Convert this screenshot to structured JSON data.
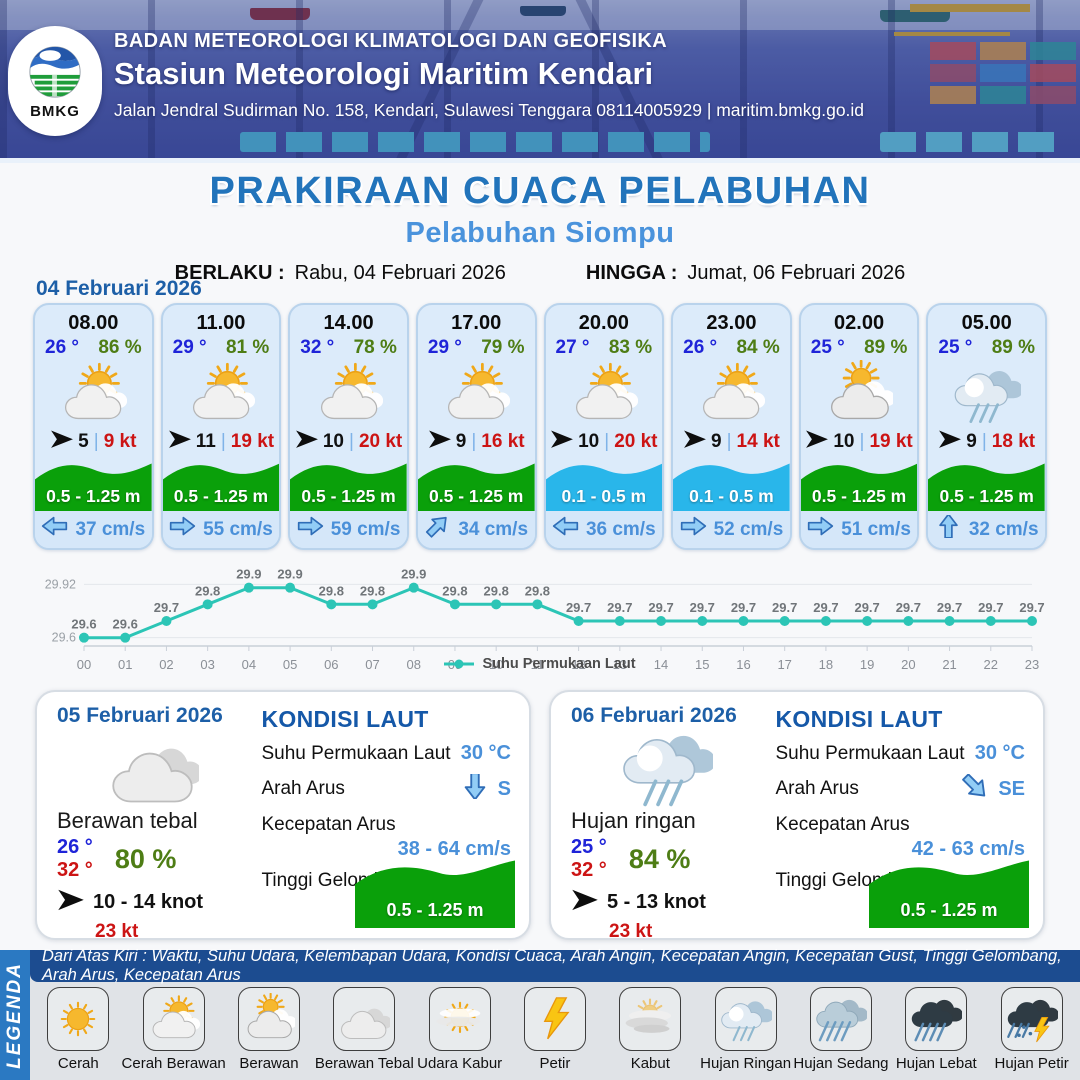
{
  "header": {
    "logo_label": "BMKG",
    "agency": "BADAN METEOROLOGI KLIMATOLOGI DAN GEOFISIKA",
    "station": "Stasiun Meteorologi Maritim Kendari",
    "address": "Jalan Jendral Sudirman No. 158, Kendari, Sulawesi Tenggara 08114005929 | maritim.bmkg.go.id"
  },
  "title": {
    "main": "PRAKIRAAN CUACA PELABUHAN",
    "subtitle": "Pelabuhan Siompu",
    "berlaku_label": "BERLAKU :",
    "berlaku_value": "Rabu, 04 Februari 2026",
    "hingga_label": "HINGGA :",
    "hingga_value": "Jumat, 06 Februari 2026"
  },
  "day1": {
    "date": "04 Februari 2026",
    "cards": [
      {
        "time": "08.00",
        "temp": "26 °",
        "humidity": "86 %",
        "weather": "cerah-berawan",
        "wind_avg": "5",
        "wind_gust": "9 kt",
        "wave": "0.5 - 1.25 m",
        "wave_level": "green",
        "current_dir": "W",
        "current_speed": "37 cm/s"
      },
      {
        "time": "11.00",
        "temp": "29 °",
        "humidity": "81 %",
        "weather": "cerah-berawan",
        "wind_avg": "11",
        "wind_gust": "19 kt",
        "wave": "0.5 - 1.25 m",
        "wave_level": "green",
        "current_dir": "E",
        "current_speed": "55 cm/s"
      },
      {
        "time": "14.00",
        "temp": "32 °",
        "humidity": "78 %",
        "weather": "cerah-berawan",
        "wind_avg": "10",
        "wind_gust": "20 kt",
        "wave": "0.5 - 1.25 m",
        "wave_level": "green",
        "current_dir": "E",
        "current_speed": "59 cm/s"
      },
      {
        "time": "17.00",
        "temp": "29 °",
        "humidity": "79 %",
        "weather": "cerah-berawan",
        "wind_avg": "9",
        "wind_gust": "16 kt",
        "wave": "0.5 - 1.25 m",
        "wave_level": "green",
        "current_dir": "NE",
        "current_speed": "34 cm/s"
      },
      {
        "time": "20.00",
        "temp": "27 °",
        "humidity": "83 %",
        "weather": "cerah-berawan",
        "wind_avg": "10",
        "wind_gust": "20 kt",
        "wave": "0.1 - 0.5 m",
        "wave_level": "blue",
        "current_dir": "W",
        "current_speed": "36 cm/s"
      },
      {
        "time": "23.00",
        "temp": "26 °",
        "humidity": "84 %",
        "weather": "cerah-berawan",
        "wind_avg": "9",
        "wind_gust": "14 kt",
        "wave": "0.1 - 0.5 m",
        "wave_level": "blue",
        "current_dir": "E",
        "current_speed": "52 cm/s"
      },
      {
        "time": "02.00",
        "temp": "25 °",
        "humidity": "89 %",
        "weather": "berawan",
        "wind_avg": "10",
        "wind_gust": "19 kt",
        "wave": "0.5 - 1.25 m",
        "wave_level": "green",
        "current_dir": "E",
        "current_speed": "51 cm/s"
      },
      {
        "time": "05.00",
        "temp": "25 °",
        "humidity": "89 %",
        "weather": "hujan-ringan",
        "wind_avg": "9",
        "wind_gust": "18 kt",
        "wave": "0.5 - 1.25 m",
        "wave_level": "green",
        "current_dir": "N",
        "current_speed": "32 cm/s"
      }
    ]
  },
  "chart_data": {
    "type": "line",
    "x": [
      "00",
      "01",
      "02",
      "03",
      "04",
      "05",
      "06",
      "07",
      "08",
      "09",
      "10",
      "11",
      "12",
      "13",
      "14",
      "15",
      "16",
      "17",
      "18",
      "19",
      "20",
      "21",
      "22",
      "23"
    ],
    "series": [
      {
        "name": "Suhu Permukaan Laut",
        "values": [
          29.6,
          29.6,
          29.7,
          29.8,
          29.9,
          29.9,
          29.8,
          29.8,
          29.9,
          29.8,
          29.8,
          29.8,
          29.7,
          29.7,
          29.7,
          29.7,
          29.7,
          29.7,
          29.7,
          29.7,
          29.7,
          29.7,
          29.7,
          29.7
        ]
      }
    ],
    "yticks": [
      29.92,
      29.6
    ],
    "ylim": [
      29.55,
      29.97
    ],
    "grid": true,
    "legend_position": "bottom",
    "title": "",
    "xlabel": "",
    "ylabel": ""
  },
  "day2": {
    "date": "05 Februari 2026",
    "weather": "berawan-tebal",
    "condition": "Berawan tebal",
    "temp_min": "26 °",
    "temp_max": "32 °",
    "humidity": "80 %",
    "wind": "10 - 14 knot",
    "gust": "23 kt",
    "sea": {
      "heading": "KONDISI LAUT",
      "sst_label": "Suhu Permukaan Laut",
      "sst": "30 °C",
      "arah_label": "Arah Arus",
      "arah": "S",
      "arah_dir": "S",
      "kecepatan_label": "Kecepatan Arus",
      "kecepatan": "38 - 64 cm/s",
      "gelombang_label": "Tinggi Gelombang",
      "gelombang": "0.5 - 1.25 m"
    }
  },
  "day3": {
    "date": "06 Februari 2026",
    "weather": "hujan-ringan",
    "condition": "Hujan ringan",
    "temp_min": "25 °",
    "temp_max": "32 °",
    "humidity": "84 %",
    "wind": "5 - 13 knot",
    "gust": "23 kt",
    "sea": {
      "heading": "KONDISI LAUT",
      "sst_label": "Suhu Permukaan Laut",
      "sst": "30 °C",
      "arah_label": "Arah Arus",
      "arah": "SE",
      "arah_dir": "SE",
      "kecepatan_label": "Kecepatan Arus",
      "kecepatan": "42 - 63 cm/s",
      "gelombang_label": "Tinggi Gelombang",
      "gelombang": "0.5 - 1.25 m"
    }
  },
  "legend": {
    "strip": "LEGENDA",
    "description": "Dari Atas Kiri : Waktu, Suhu Udara, Kelembapan Udara, Kondisi Cuaca, Arah Angin, Kecepatan Angin, Kecepatan Gust, Tinggi Gelombang, Arah Arus, Kecepatan Arus",
    "items": [
      {
        "label": "Cerah",
        "icon": "cerah"
      },
      {
        "label": "Cerah Berawan",
        "icon": "cerah-berawan"
      },
      {
        "label": "Berawan",
        "icon": "berawan"
      },
      {
        "label": "Berawan Tebal",
        "icon": "berawan-tebal"
      },
      {
        "label": "Udara Kabur",
        "icon": "udara-kabur"
      },
      {
        "label": "Petir",
        "icon": "petir"
      },
      {
        "label": "Kabut",
        "icon": "kabut"
      },
      {
        "label": "Hujan Ringan",
        "icon": "hujan-ringan"
      },
      {
        "label": "Hujan Sedang",
        "icon": "hujan-sedang"
      },
      {
        "label": "Hujan Lebat",
        "icon": "hujan-lebat"
      },
      {
        "label": "Hujan Petir",
        "icon": "hujan-petir"
      }
    ]
  },
  "colors": {
    "accent_blue": "#2274bb",
    "subtitle_blue": "#4a93dc",
    "date_blue": "#1d5fa7",
    "temp_blue": "#1f24d8",
    "temp_red": "#cc1414",
    "humidity_green": "#4e7d15",
    "current_blue": "#4a90d9",
    "wave_green": "#0aa00a",
    "wave_blue": "#29b6ea",
    "chart_line": "#2cc5b6",
    "legend_strip_blue": "#2b79c2",
    "legend_bar_blue": "#1c4c90"
  }
}
